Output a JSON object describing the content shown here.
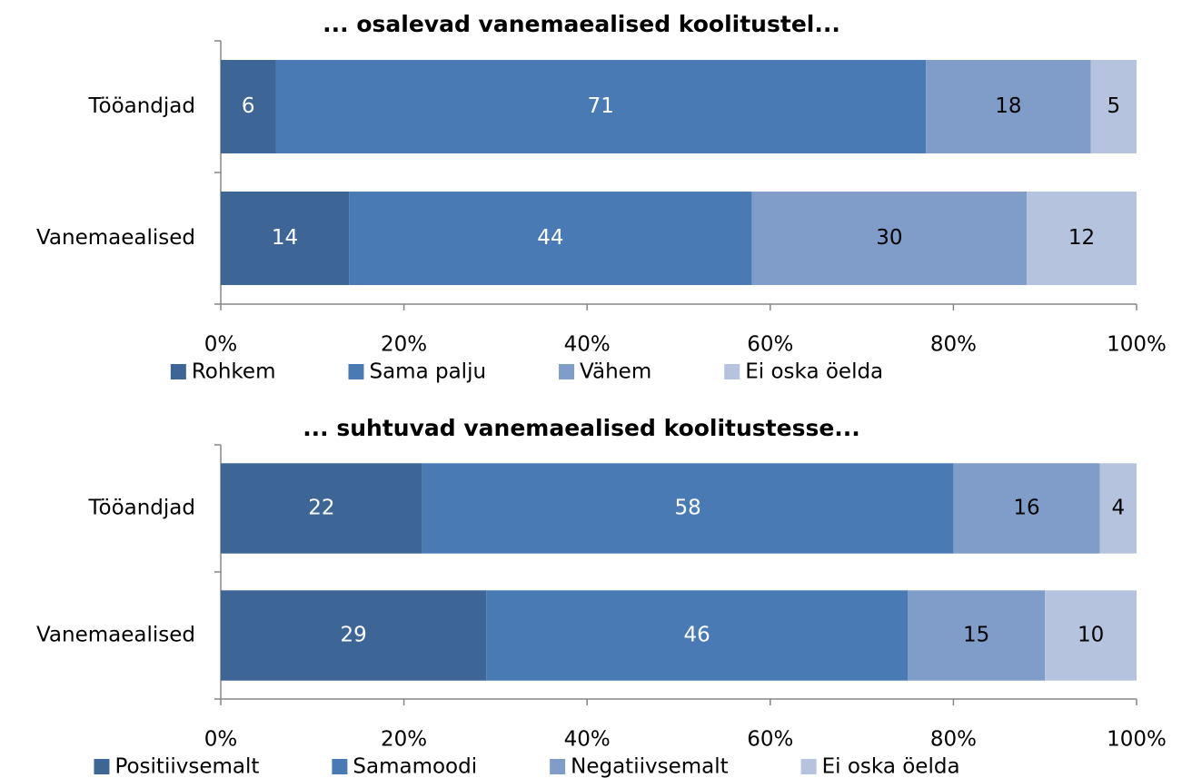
{
  "chart_data": [
    {
      "type": "stacked_bar_horizontal",
      "title": "... osalevad vanemaealised koolitustel...",
      "categories": [
        "Tööandjad",
        "Vanemaealised"
      ],
      "series": [
        {
          "name": "Rohkem",
          "color": "#3d6595",
          "label_color": "#ffffff",
          "values": [
            6,
            14
          ]
        },
        {
          "name": "Sama palju",
          "color": "#4a7ab3",
          "label_color": "#ffffff",
          "values": [
            71,
            44
          ]
        },
        {
          "name": "Vähem",
          "color": "#7f9dc8",
          "label_color": "#000000",
          "values": [
            18,
            30
          ]
        },
        {
          "name": "Ei oska öelda",
          "color": "#b5c3df",
          "label_color": "#000000",
          "values": [
            5,
            12
          ]
        }
      ],
      "xlim": [
        0,
        100
      ],
      "xticks": [
        {
          "value": 0,
          "label": "0%"
        },
        {
          "value": 20,
          "label": "20%"
        },
        {
          "value": 40,
          "label": "40%"
        },
        {
          "value": 60,
          "label": "60%"
        },
        {
          "value": 80,
          "label": "80%"
        },
        {
          "value": 100,
          "label": "100%"
        }
      ],
      "legend": "bottom"
    },
    {
      "type": "stacked_bar_horizontal",
      "title": "... suhtuvad vanemaealised koolitustesse...",
      "categories": [
        "Tööandjad",
        "Vanemaealised"
      ],
      "series": [
        {
          "name": "Positiivsemalt",
          "color": "#3d6595",
          "label_color": "#ffffff",
          "values": [
            22,
            29
          ]
        },
        {
          "name": "Samamoodi",
          "color": "#4a7ab3",
          "label_color": "#ffffff",
          "values": [
            58,
            46
          ]
        },
        {
          "name": "Negatiivsemalt",
          "color": "#7f9dc8",
          "label_color": "#000000",
          "values": [
            16,
            15
          ]
        },
        {
          "name": "Ei oska öelda",
          "color": "#b5c3df",
          "label_color": "#000000",
          "values": [
            4,
            10
          ]
        }
      ],
      "xlim": [
        0,
        100
      ],
      "xticks": [
        {
          "value": 0,
          "label": "0%"
        },
        {
          "value": 20,
          "label": "20%"
        },
        {
          "value": 40,
          "label": "40%"
        },
        {
          "value": 60,
          "label": "60%"
        },
        {
          "value": 80,
          "label": "80%"
        },
        {
          "value": 100,
          "label": "100%"
        }
      ],
      "legend": "bottom"
    }
  ]
}
